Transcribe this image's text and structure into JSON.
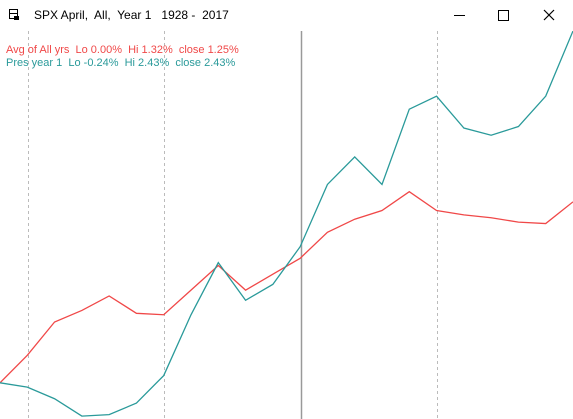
{
  "window": {
    "title": "SPX April,  All,  Year 1   1928 -  2017"
  },
  "chart_data": {
    "type": "line",
    "annotations": [
      "Avg of All yrs  Lo 0.00%  Hi 1.32%  close 1.25%",
      "Pres year 1  Lo -0.24%  Hi 2.43%  close 2.43%"
    ],
    "x": [
      0,
      1,
      2,
      3,
      4,
      5,
      6,
      7,
      8,
      9,
      10,
      11,
      12,
      13,
      14,
      15,
      16,
      17,
      18,
      19,
      20,
      21
    ],
    "xlim": [
      0,
      21
    ],
    "ylim": [
      -0.25,
      2.43
    ],
    "series": [
      {
        "name": "Avg of All yrs",
        "color": "#f04848",
        "values": [
          0,
          0.19,
          0.42,
          0.5,
          0.6,
          0.48,
          0.47,
          0.64,
          0.81,
          0.64,
          0.75,
          0.86,
          1.04,
          1.13,
          1.19,
          1.32,
          1.19,
          1.16,
          1.14,
          1.11,
          1.1,
          1.25
        ]
      },
      {
        "name": "Pres year 1",
        "color": "#2a9a9a",
        "values": [
          0,
          -0.03,
          -0.11,
          -0.23,
          -0.22,
          -0.14,
          0.05,
          0.47,
          0.83,
          0.57,
          0.68,
          0.94,
          1.37,
          1.56,
          1.37,
          1.89,
          1.98,
          1.76,
          1.71,
          1.77,
          1.98,
          2.43
        ]
      }
    ]
  }
}
